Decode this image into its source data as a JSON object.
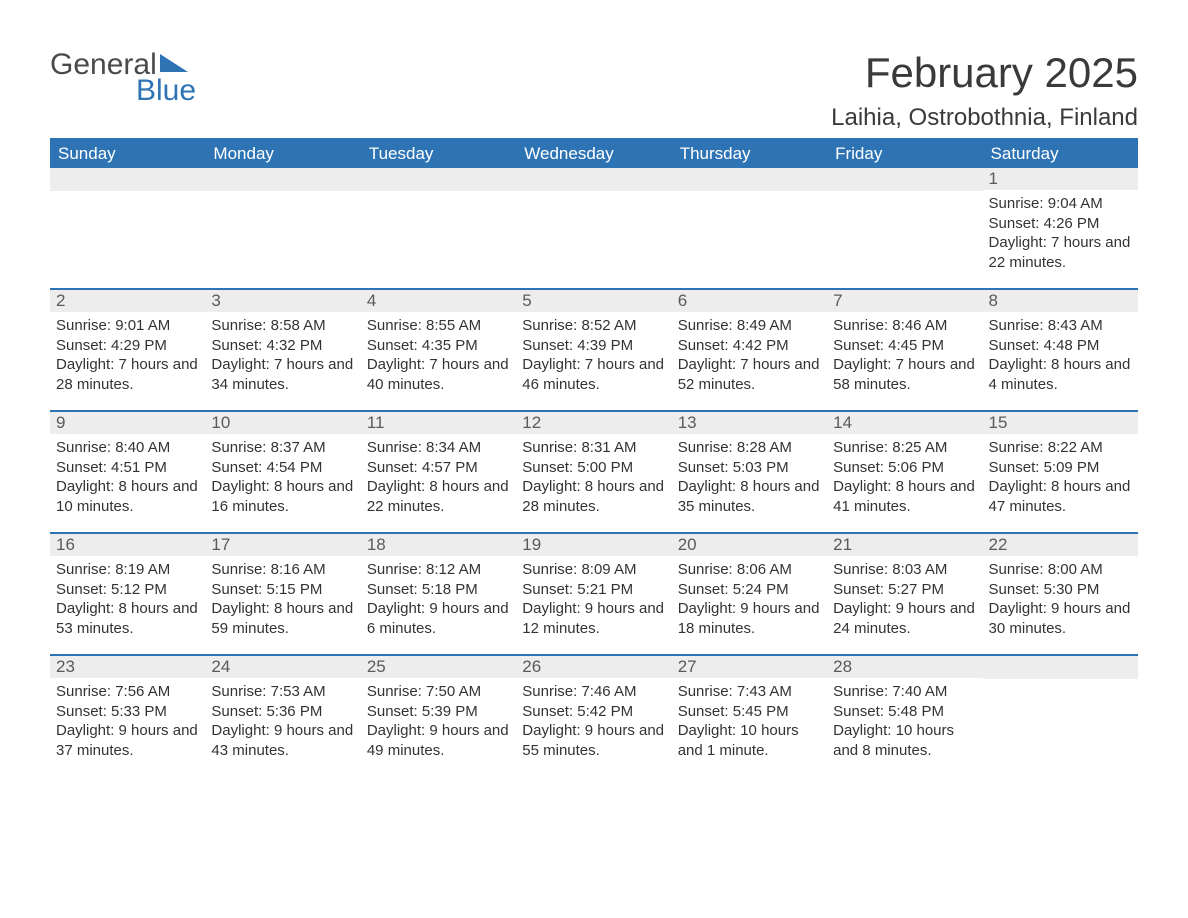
{
  "brand": {
    "word1": "General",
    "word2": "Blue"
  },
  "title": "February 2025",
  "location": "Laihia, Ostrobothnia, Finland",
  "colors": {
    "accent": "#2e74b5",
    "header_bg": "#2e74b5",
    "header_text": "#ffffff",
    "daynum_bg": "#ededed",
    "daynum_text": "#5a5a5a",
    "body_text": "#333333",
    "page_bg": "#ffffff"
  },
  "labels": {
    "sunrise": "Sunrise",
    "sunset": "Sunset",
    "daylight": "Daylight"
  },
  "day_names": [
    "Sunday",
    "Monday",
    "Tuesday",
    "Wednesday",
    "Thursday",
    "Friday",
    "Saturday"
  ],
  "weeks": [
    [
      null,
      null,
      null,
      null,
      null,
      null,
      {
        "day": "1",
        "sunrise": "9:04 AM",
        "sunset": "4:26 PM",
        "daylight": "7 hours and 22 minutes."
      }
    ],
    [
      {
        "day": "2",
        "sunrise": "9:01 AM",
        "sunset": "4:29 PM",
        "daylight": "7 hours and 28 minutes."
      },
      {
        "day": "3",
        "sunrise": "8:58 AM",
        "sunset": "4:32 PM",
        "daylight": "7 hours and 34 minutes."
      },
      {
        "day": "4",
        "sunrise": "8:55 AM",
        "sunset": "4:35 PM",
        "daylight": "7 hours and 40 minutes."
      },
      {
        "day": "5",
        "sunrise": "8:52 AM",
        "sunset": "4:39 PM",
        "daylight": "7 hours and 46 minutes."
      },
      {
        "day": "6",
        "sunrise": "8:49 AM",
        "sunset": "4:42 PM",
        "daylight": "7 hours and 52 minutes."
      },
      {
        "day": "7",
        "sunrise": "8:46 AM",
        "sunset": "4:45 PM",
        "daylight": "7 hours and 58 minutes."
      },
      {
        "day": "8",
        "sunrise": "8:43 AM",
        "sunset": "4:48 PM",
        "daylight": "8 hours and 4 minutes."
      }
    ],
    [
      {
        "day": "9",
        "sunrise": "8:40 AM",
        "sunset": "4:51 PM",
        "daylight": "8 hours and 10 minutes."
      },
      {
        "day": "10",
        "sunrise": "8:37 AM",
        "sunset": "4:54 PM",
        "daylight": "8 hours and 16 minutes."
      },
      {
        "day": "11",
        "sunrise": "8:34 AM",
        "sunset": "4:57 PM",
        "daylight": "8 hours and 22 minutes."
      },
      {
        "day": "12",
        "sunrise": "8:31 AM",
        "sunset": "5:00 PM",
        "daylight": "8 hours and 28 minutes."
      },
      {
        "day": "13",
        "sunrise": "8:28 AM",
        "sunset": "5:03 PM",
        "daylight": "8 hours and 35 minutes."
      },
      {
        "day": "14",
        "sunrise": "8:25 AM",
        "sunset": "5:06 PM",
        "daylight": "8 hours and 41 minutes."
      },
      {
        "day": "15",
        "sunrise": "8:22 AM",
        "sunset": "5:09 PM",
        "daylight": "8 hours and 47 minutes."
      }
    ],
    [
      {
        "day": "16",
        "sunrise": "8:19 AM",
        "sunset": "5:12 PM",
        "daylight": "8 hours and 53 minutes."
      },
      {
        "day": "17",
        "sunrise": "8:16 AM",
        "sunset": "5:15 PM",
        "daylight": "8 hours and 59 minutes."
      },
      {
        "day": "18",
        "sunrise": "8:12 AM",
        "sunset": "5:18 PM",
        "daylight": "9 hours and 6 minutes."
      },
      {
        "day": "19",
        "sunrise": "8:09 AM",
        "sunset": "5:21 PM",
        "daylight": "9 hours and 12 minutes."
      },
      {
        "day": "20",
        "sunrise": "8:06 AM",
        "sunset": "5:24 PM",
        "daylight": "9 hours and 18 minutes."
      },
      {
        "day": "21",
        "sunrise": "8:03 AM",
        "sunset": "5:27 PM",
        "daylight": "9 hours and 24 minutes."
      },
      {
        "day": "22",
        "sunrise": "8:00 AM",
        "sunset": "5:30 PM",
        "daylight": "9 hours and 30 minutes."
      }
    ],
    [
      {
        "day": "23",
        "sunrise": "7:56 AM",
        "sunset": "5:33 PM",
        "daylight": "9 hours and 37 minutes."
      },
      {
        "day": "24",
        "sunrise": "7:53 AM",
        "sunset": "5:36 PM",
        "daylight": "9 hours and 43 minutes."
      },
      {
        "day": "25",
        "sunrise": "7:50 AM",
        "sunset": "5:39 PM",
        "daylight": "9 hours and 49 minutes."
      },
      {
        "day": "26",
        "sunrise": "7:46 AM",
        "sunset": "5:42 PM",
        "daylight": "9 hours and 55 minutes."
      },
      {
        "day": "27",
        "sunrise": "7:43 AM",
        "sunset": "5:45 PM",
        "daylight": "10 hours and 1 minute."
      },
      {
        "day": "28",
        "sunrise": "7:40 AM",
        "sunset": "5:48 PM",
        "daylight": "10 hours and 8 minutes."
      },
      null
    ]
  ]
}
